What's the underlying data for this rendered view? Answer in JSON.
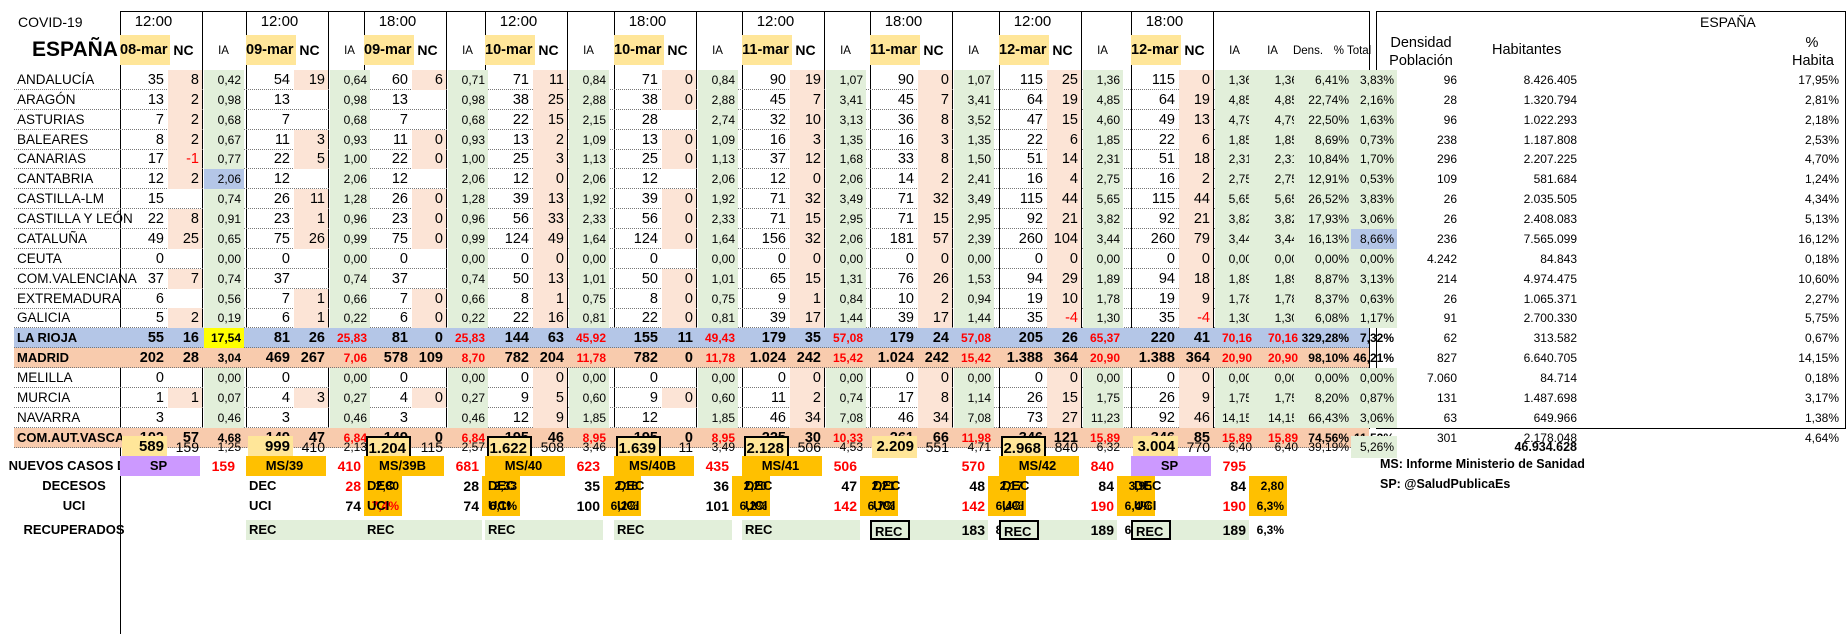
{
  "title": {
    "virus": "COVID-19",
    "country": "ESPAÑA"
  },
  "colors": {
    "date_bg": "#ffe699",
    "ia_bg": "#e2efda",
    "nc_bg": "#fce4d6",
    "rioja_bg": "#b4c6e7",
    "madrid_bg": "#f8cbad",
    "vasca_bg": "#f8cbad",
    "highlight_yellow": "#ffff00",
    "sp_purple": "#cc99ff",
    "ms_orange": "#ffc000",
    "red_text": "#ff0000"
  },
  "snapshots": [
    {
      "time": "12:00",
      "date": "08-mar",
      "nc": "NC",
      "ia": "IA"
    },
    {
      "time": "12:00",
      "date": "09-mar",
      "nc": "NC",
      "ia": "IA"
    },
    {
      "time": "18:00",
      "date": "09-mar",
      "nc": "NC",
      "ia": "IA"
    },
    {
      "time": "12:00",
      "date": "10-mar",
      "nc": "NC",
      "ia": "IA"
    },
    {
      "time": "18:00",
      "date": "10-mar",
      "nc": "NC",
      "ia": "IA"
    },
    {
      "time": "12:00",
      "date": "11-mar",
      "nc": "NC",
      "ia": "IA"
    },
    {
      "time": "18:00",
      "date": "11-mar",
      "nc": "NC",
      "ia": "IA"
    },
    {
      "time": "12:00",
      "date": "12-mar",
      "nc": "NC",
      "ia": "IA"
    },
    {
      "time": "18:00",
      "date": "12-mar",
      "nc": "NC",
      "ia": "IA"
    }
  ],
  "extra_headers": {
    "dens": "Dens.",
    "pct_total": "% Total"
  },
  "right_panel": {
    "title": "ESPAÑA",
    "h1_line1": "Densidad",
    "h1_line2": "Población",
    "h2": "Habitantes",
    "h3_line1": "%",
    "h3_line2": "Habita"
  },
  "regions": [
    {
      "name": "ANDALUCÍA",
      "v": [
        [
          "35",
          "8",
          "0,42"
        ],
        [
          "54",
          "19",
          "0,64"
        ],
        [
          "60",
          "6",
          "0,71"
        ],
        [
          "71",
          "11",
          "0,84"
        ],
        [
          "71",
          "0",
          "0,84"
        ],
        [
          "90",
          "19",
          "1,07"
        ],
        [
          "90",
          "0",
          "1,07"
        ],
        [
          "115",
          "25",
          "1,36"
        ],
        [
          "115",
          "0",
          "1,36"
        ]
      ],
      "dens": "6,41%",
      "pct": "3,83%",
      "r": [
        "96",
        "8.426.405",
        "17,95%"
      ]
    },
    {
      "name": "ARAGÓN",
      "v": [
        [
          "13",
          "2",
          "0,98"
        ],
        [
          "13",
          "",
          "0,98"
        ],
        [
          "13",
          "",
          "0,98"
        ],
        [
          "38",
          "25",
          "2,88"
        ],
        [
          "38",
          "0",
          "2,88"
        ],
        [
          "45",
          "7",
          "3,41"
        ],
        [
          "45",
          "7",
          "3,41"
        ],
        [
          "64",
          "19",
          "4,85"
        ],
        [
          "64",
          "19",
          "4,85"
        ]
      ],
      "dens": "22,74%",
      "pct": "2,16%",
      "r": [
        "28",
        "1.320.794",
        "2,81%"
      ]
    },
    {
      "name": "ASTURIAS",
      "v": [
        [
          "7",
          "2",
          "0,68"
        ],
        [
          "7",
          "",
          "0,68"
        ],
        [
          "7",
          "",
          "0,68"
        ],
        [
          "22",
          "15",
          "2,15"
        ],
        [
          "28",
          "",
          "2,74"
        ],
        [
          "32",
          "10",
          "3,13"
        ],
        [
          "36",
          "8",
          "3,52"
        ],
        [
          "47",
          "15",
          "4,60"
        ],
        [
          "49",
          "13",
          "4,79"
        ]
      ],
      "dens": "22,50%",
      "pct": "1,63%",
      "r": [
        "96",
        "1.022.293",
        "2,18%"
      ]
    },
    {
      "name": "BALEARES",
      "v": [
        [
          "8",
          "2",
          "0,67"
        ],
        [
          "11",
          "3",
          "0,93"
        ],
        [
          "11",
          "0",
          "0,93"
        ],
        [
          "13",
          "2",
          "1,09"
        ],
        [
          "13",
          "0",
          "1,09"
        ],
        [
          "16",
          "3",
          "1,35"
        ],
        [
          "16",
          "3",
          "1,35"
        ],
        [
          "22",
          "6",
          "1,85"
        ],
        [
          "22",
          "6",
          "1,85"
        ]
      ],
      "dens": "8,69%",
      "pct": "0,73%",
      "r": [
        "238",
        "1.187.808",
        "2,53%"
      ]
    },
    {
      "name": "CANARIAS",
      "v": [
        [
          "17",
          "-1",
          "0,77"
        ],
        [
          "22",
          "5",
          "1,00"
        ],
        [
          "22",
          "0",
          "1,00"
        ],
        [
          "25",
          "3",
          "1,13"
        ],
        [
          "25",
          "0",
          "1,13"
        ],
        [
          "37",
          "12",
          "1,68"
        ],
        [
          "33",
          "8",
          "1,50"
        ],
        [
          "51",
          "14",
          "2,31"
        ],
        [
          "51",
          "18",
          "2,31"
        ]
      ],
      "dens": "10,84%",
      "pct": "1,70%",
      "r": [
        "296",
        "2.207.225",
        "4,70%"
      ]
    },
    {
      "name": "CANTABRIA",
      "v": [
        [
          "12",
          "2",
          "2,06"
        ],
        [
          "12",
          "",
          "2,06"
        ],
        [
          "12",
          "",
          "2,06"
        ],
        [
          "12",
          "0",
          "2,06"
        ],
        [
          "12",
          "",
          "2,06"
        ],
        [
          "12",
          "0",
          "2,06"
        ],
        [
          "14",
          "2",
          "2,41"
        ],
        [
          "16",
          "4",
          "2,75"
        ],
        [
          "16",
          "2",
          "2,75"
        ]
      ],
      "dens": "12,91%",
      "pct": "0,53%",
      "r": [
        "109",
        "581.684",
        "1,24%"
      ]
    },
    {
      "name": "CASTILLA-LM",
      "v": [
        [
          "15",
          "",
          "0,74"
        ],
        [
          "26",
          "11",
          "1,28"
        ],
        [
          "26",
          "0",
          "1,28"
        ],
        [
          "39",
          "13",
          "1,92"
        ],
        [
          "39",
          "0",
          "1,92"
        ],
        [
          "71",
          "32",
          "3,49"
        ],
        [
          "71",
          "32",
          "3,49"
        ],
        [
          "115",
          "44",
          "5,65"
        ],
        [
          "115",
          "44",
          "5,65"
        ]
      ],
      "dens": "26,52%",
      "pct": "3,83%",
      "r": [
        "26",
        "2.035.505",
        "4,34%"
      ]
    },
    {
      "name": "CASTILLA Y LEÓN",
      "v": [
        [
          "22",
          "8",
          "0,91"
        ],
        [
          "23",
          "1",
          "0,96"
        ],
        [
          "23",
          "0",
          "0,96"
        ],
        [
          "56",
          "33",
          "2,33"
        ],
        [
          "56",
          "0",
          "2,33"
        ],
        [
          "71",
          "15",
          "2,95"
        ],
        [
          "71",
          "15",
          "2,95"
        ],
        [
          "92",
          "21",
          "3,82"
        ],
        [
          "92",
          "21",
          "3,82"
        ]
      ],
      "dens": "17,93%",
      "pct": "3,06%",
      "r": [
        "26",
        "2.408.083",
        "5,13%"
      ]
    },
    {
      "name": "CATALUÑA",
      "v": [
        [
          "49",
          "25",
          "0,65"
        ],
        [
          "75",
          "26",
          "0,99"
        ],
        [
          "75",
          "0",
          "0,99"
        ],
        [
          "124",
          "49",
          "1,64"
        ],
        [
          "124",
          "0",
          "1,64"
        ],
        [
          "156",
          "32",
          "2,06"
        ],
        [
          "181",
          "57",
          "2,39"
        ],
        [
          "260",
          "104",
          "3,44"
        ],
        [
          "260",
          "79",
          "3,44"
        ]
      ],
      "dens": "16,13%",
      "pct": "8,66%",
      "r": [
        "236",
        "7.565.099",
        "16,12%"
      ]
    },
    {
      "name": "CEUTA",
      "v": [
        [
          "0",
          "",
          "0,00"
        ],
        [
          "0",
          "",
          "0,00"
        ],
        [
          "0",
          "",
          "0,00"
        ],
        [
          "0",
          "0",
          "0,00"
        ],
        [
          "0",
          "",
          "0,00"
        ],
        [
          "0",
          "0",
          "0,00"
        ],
        [
          "0",
          "0",
          "0,00"
        ],
        [
          "0",
          "0",
          "0,00"
        ],
        [
          "0",
          "0",
          "0,00"
        ]
      ],
      "dens": "0,00%",
      "pct": "0,00%",
      "r": [
        "4.242",
        "84.843",
        "0,18%"
      ]
    },
    {
      "name": "COM.VALENCIANA",
      "v": [
        [
          "37",
          "7",
          "0,74"
        ],
        [
          "37",
          "",
          "0,74"
        ],
        [
          "37",
          "",
          "0,74"
        ],
        [
          "50",
          "13",
          "1,01"
        ],
        [
          "50",
          "0",
          "1,01"
        ],
        [
          "65",
          "15",
          "1,31"
        ],
        [
          "76",
          "26",
          "1,53"
        ],
        [
          "94",
          "29",
          "1,89"
        ],
        [
          "94",
          "18",
          "1,89"
        ]
      ],
      "dens": "8,87%",
      "pct": "3,13%",
      "r": [
        "214",
        "4.974.475",
        "10,60%"
      ]
    },
    {
      "name": "EXTREMADURA",
      "v": [
        [
          "6",
          "",
          "0,56"
        ],
        [
          "7",
          "1",
          "0,66"
        ],
        [
          "7",
          "0",
          "0,66"
        ],
        [
          "8",
          "1",
          "0,75"
        ],
        [
          "8",
          "0",
          "0,75"
        ],
        [
          "9",
          "1",
          "0,84"
        ],
        [
          "10",
          "2",
          "0,94"
        ],
        [
          "19",
          "10",
          "1,78"
        ],
        [
          "19",
          "9",
          "1,78"
        ]
      ],
      "dens": "8,37%",
      "pct": "0,63%",
      "r": [
        "26",
        "1.065.371",
        "2,27%"
      ]
    },
    {
      "name": "GALICIA",
      "v": [
        [
          "5",
          "2",
          "0,19"
        ],
        [
          "6",
          "1",
          "0,22"
        ],
        [
          "6",
          "0",
          "0,22"
        ],
        [
          "22",
          "16",
          "0,81"
        ],
        [
          "22",
          "0",
          "0,81"
        ],
        [
          "39",
          "17",
          "1,44"
        ],
        [
          "39",
          "17",
          "1,44"
        ],
        [
          "35",
          "-4",
          "1,30"
        ],
        [
          "35",
          "-4",
          "1,30"
        ]
      ],
      "dens": "6,08%",
      "pct": "1,17%",
      "r": [
        "91",
        "2.700.330",
        "5,75%"
      ]
    },
    {
      "name": "LA RIOJA",
      "v": [
        [
          "55",
          "16",
          "17,54"
        ],
        [
          "81",
          "26",
          "25,83"
        ],
        [
          "81",
          "0",
          "25,83"
        ],
        [
          "144",
          "63",
          "45,92"
        ],
        [
          "155",
          "11",
          "49,43"
        ],
        [
          "179",
          "35",
          "57,08"
        ],
        [
          "179",
          "24",
          "57,08"
        ],
        [
          "205",
          "26",
          "65,37"
        ],
        [
          "220",
          "41",
          "70,16"
        ]
      ],
      "dens": "329,28%",
      "pct": "7,32%",
      "r": [
        "62",
        "313.582",
        "0,67%"
      ]
    },
    {
      "name": "MADRID",
      "v": [
        [
          "202",
          "28",
          "3,04"
        ],
        [
          "469",
          "267",
          "7,06"
        ],
        [
          "578",
          "109",
          "8,70"
        ],
        [
          "782",
          "204",
          "11,78"
        ],
        [
          "782",
          "0",
          "11,78"
        ],
        [
          "1.024",
          "242",
          "15,42"
        ],
        [
          "1.024",
          "242",
          "15,42"
        ],
        [
          "1.388",
          "364",
          "20,90"
        ],
        [
          "1.388",
          "364",
          "20,90"
        ]
      ],
      "dens": "98,10%",
      "pct": "46,21%",
      "r": [
        "827",
        "6.640.705",
        "14,15%"
      ]
    },
    {
      "name": "MELILLA",
      "v": [
        [
          "0",
          "",
          "0,00"
        ],
        [
          "0",
          "",
          "0,00"
        ],
        [
          "0",
          "",
          "0,00"
        ],
        [
          "0",
          "0",
          "0,00"
        ],
        [
          "0",
          "",
          "0,00"
        ],
        [
          "0",
          "0",
          "0,00"
        ],
        [
          "0",
          "0",
          "0,00"
        ],
        [
          "0",
          "0",
          "0,00"
        ],
        [
          "0",
          "0",
          "0,00"
        ]
      ],
      "dens": "0,00%",
      "pct": "0,00%",
      "r": [
        "7.060",
        "84.714",
        "0,18%"
      ]
    },
    {
      "name": "MURCIA",
      "v": [
        [
          "1",
          "1",
          "0,07"
        ],
        [
          "4",
          "3",
          "0,27"
        ],
        [
          "4",
          "0",
          "0,27"
        ],
        [
          "9",
          "5",
          "0,60"
        ],
        [
          "9",
          "0",
          "0,60"
        ],
        [
          "11",
          "2",
          "0,74"
        ],
        [
          "17",
          "8",
          "1,14"
        ],
        [
          "26",
          "15",
          "1,75"
        ],
        [
          "26",
          "9",
          "1,75"
        ]
      ],
      "dens": "8,20%",
      "pct": "0,87%",
      "r": [
        "131",
        "1.487.698",
        "3,17%"
      ]
    },
    {
      "name": "NAVARRA",
      "v": [
        [
          "3",
          "",
          "0,46"
        ],
        [
          "3",
          "",
          "0,46"
        ],
        [
          "3",
          "",
          "0,46"
        ],
        [
          "12",
          "9",
          "1,85"
        ],
        [
          "12",
          "",
          "1,85"
        ],
        [
          "46",
          "34",
          "7,08"
        ],
        [
          "46",
          "34",
          "7,08"
        ],
        [
          "73",
          "27",
          "11,23"
        ],
        [
          "92",
          "46",
          "14,15"
        ]
      ],
      "dens": "66,43%",
      "pct": "3,06%",
      "r": [
        "63",
        "649.966",
        "1,38%"
      ]
    },
    {
      "name": "COM.AUT.VASCA",
      "v": [
        [
          "102",
          "57",
          "4,68"
        ],
        [
          "149",
          "47",
          "6,84"
        ],
        [
          "149",
          "0",
          "6,84"
        ],
        [
          "195",
          "46",
          "8,95"
        ],
        [
          "195",
          "0",
          "8,95"
        ],
        [
          "225",
          "30",
          "10,33"
        ],
        [
          "261",
          "66",
          "11,98"
        ],
        [
          "346",
          "121",
          "15,89"
        ],
        [
          "346",
          "85",
          "15,89"
        ]
      ],
      "dens": "74,56%",
      "pct": "11,52%",
      "r": [
        "301",
        "2.178.048",
        "4,64%"
      ]
    }
  ],
  "totals": {
    "v": [
      [
        "589",
        "159",
        "1,25"
      ],
      [
        "999",
        "410",
        "2,13"
      ],
      [
        "1.204",
        "115",
        "2,57"
      ],
      [
        "1.622",
        "508",
        "3,46"
      ],
      [
        "1.639",
        "11",
        "3,49"
      ],
      [
        "2.128",
        "506",
        "4,53"
      ],
      [
        "2.209",
        "551",
        "4,71"
      ],
      [
        "2.968",
        "840",
        "6,32"
      ],
      [
        "3.004",
        "770",
        "6,40"
      ]
    ],
    "dens": "39,19%",
    "pct": "5,26%",
    "habitantes": "46.934.628"
  },
  "new_cases": {
    "label": "NUEVOS CASOS DIA",
    "src": [
      "SP",
      "MS/39",
      "MS/39B",
      "MS/40",
      "MS/40B",
      "MS/41",
      "",
      "MS/42",
      "SP"
    ],
    "val": [
      "159",
      "410",
      "681",
      "623",
      "435",
      "506",
      "570",
      "840",
      "795"
    ]
  },
  "deaths": {
    "label": "DECESOS",
    "tag": "DEC",
    "vals": [
      "28",
      "28",
      "35",
      "36",
      "47",
      "48",
      "84",
      "84"
    ],
    "pcts": [
      "2,80",
      "2,33",
      "2,16",
      "2,20",
      "2,21",
      "2,17",
      "3,95",
      "2,80"
    ]
  },
  "icu": {
    "label": "UCI",
    "tag": "UCI",
    "vals": [
      "74",
      "74",
      "100",
      "101",
      "142",
      "142",
      "190",
      "190"
    ],
    "pcts": [
      "7,4%",
      "6,1%",
      "6,2%",
      "6,2%",
      "6,7%",
      "6,4%",
      "6,4%",
      "6,3%"
    ]
  },
  "recovered": {
    "label": "RECUPERADOS",
    "tag": "REC",
    "vals": [
      "",
      "",
      "",
      "",
      "",
      "183",
      "189",
      "189"
    ],
    "pcts": [
      "",
      "",
      "",
      "",
      "",
      "8,3%",
      "6,4%",
      "6,3%"
    ]
  },
  "legend": {
    "ms": "MS: Informe Ministerio de Sanidad",
    "sp": "SP: @SaludPublicaEs"
  }
}
